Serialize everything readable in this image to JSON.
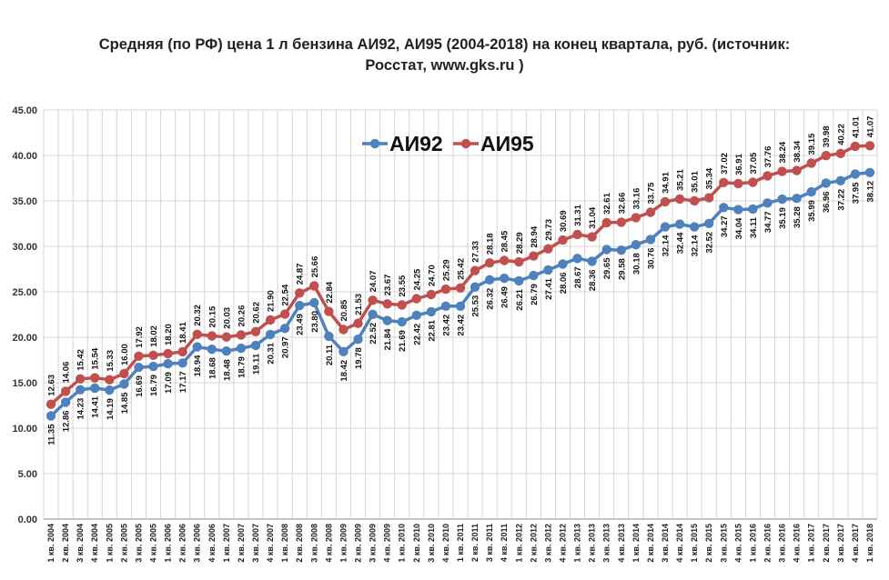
{
  "chart_data": {
    "type": "line",
    "title_line1": "Средняя (по РФ) цена 1 л бензина АИ92, АИ95 (2004-2018) на конец квартала, руб. (источник:",
    "title_line2": "Росстат, www.gks.ru )",
    "ylim": [
      0,
      45
    ],
    "yticks": [
      "0.00",
      "5.00",
      "10.00",
      "15.00",
      "20.00",
      "25.00",
      "30.00",
      "35.00",
      "40.00",
      "45.00"
    ],
    "grid": "vertical and horizontal",
    "legend_position": "top-center",
    "categories": [
      "1 кв. 2004",
      "2 кв. 2004",
      "3 кв. 2004",
      "4 кв. 2004",
      "1 кв. 2005",
      "2 кв. 2005",
      "3 кв. 2005",
      "4 кв. 2005",
      "1 кв. 2006",
      "2 кв. 2006",
      "3 кв. 2006",
      "4 кв. 2006",
      "1 кв. 2007",
      "2 кв. 2007",
      "3 кв. 2007",
      "4 кв. 2007",
      "1 кв. 2008",
      "2 кв. 2008",
      "3 кв. 2008",
      "4 кв. 2008",
      "1 кв. 2009",
      "2 кв. 2009",
      "3 кв. 2009",
      "4 кв. 2009",
      "1 кв. 2010",
      "2 кв. 2010",
      "3 кв. 2010",
      "4 кв. 2010",
      "1 кв. 2011",
      "2 кв. 2011",
      "3 кв. 2011",
      "4 кв. 2011",
      "1 кв. 2012",
      "2 кв. 2012",
      "3 кв. 2012",
      "4 кв. 2012",
      "1 кв. 2013",
      "2 кв. 2013",
      "3 кв. 2013",
      "4 кв. 2013",
      "1 кв. 2014",
      "2 кв. 2014",
      "3 кв. 2014",
      "4 кв. 2014",
      "1 кв. 2015",
      "2 кв. 2015",
      "3 кв. 2015",
      "4 кв. 2015",
      "1 кв. 2016",
      "2 кв. 2016",
      "3 кв. 2016",
      "4 кв. 2016",
      "1 кв. 2017",
      "2 кв. 2017",
      "3 кв. 2017",
      "4 кв. 2017",
      "1 кв. 2018"
    ],
    "series": [
      {
        "name": "АИ92",
        "color": "#4F81BD",
        "values": [
          11.35,
          12.86,
          14.23,
          14.41,
          14.19,
          14.85,
          16.69,
          16.79,
          17.09,
          17.17,
          18.94,
          18.68,
          18.48,
          18.79,
          19.11,
          20.31,
          20.97,
          23.49,
          23.8,
          20.11,
          18.42,
          19.78,
          22.52,
          21.84,
          21.69,
          22.42,
          22.81,
          23.42,
          23.42,
          25.53,
          26.32,
          26.49,
          26.21,
          26.79,
          27.41,
          28.06,
          28.67,
          28.36,
          29.65,
          29.58,
          30.18,
          30.76,
          32.14,
          32.44,
          32.14,
          32.52,
          34.27,
          34.04,
          34.11,
          34.77,
          35.19,
          35.28,
          35.99,
          36.96,
          37.22,
          37.95,
          38.12
        ]
      },
      {
        "name": "АИ95",
        "color": "#C0504D",
        "values": [
          12.63,
          14.06,
          15.42,
          15.54,
          15.33,
          16.0,
          17.92,
          18.02,
          18.2,
          18.41,
          20.32,
          20.15,
          20.03,
          20.26,
          20.62,
          21.9,
          22.54,
          24.87,
          25.66,
          22.84,
          20.85,
          21.53,
          24.07,
          23.67,
          23.55,
          24.25,
          24.7,
          25.29,
          25.42,
          27.33,
          28.18,
          28.45,
          28.29,
          28.94,
          29.73,
          30.69,
          31.31,
          31.04,
          32.61,
          32.66,
          33.16,
          33.75,
          34.91,
          35.21,
          35.01,
          35.34,
          37.02,
          36.91,
          37.05,
          37.76,
          38.24,
          38.34,
          39.15,
          39.98,
          40.22,
          41.01,
          41.07
        ]
      }
    ]
  }
}
